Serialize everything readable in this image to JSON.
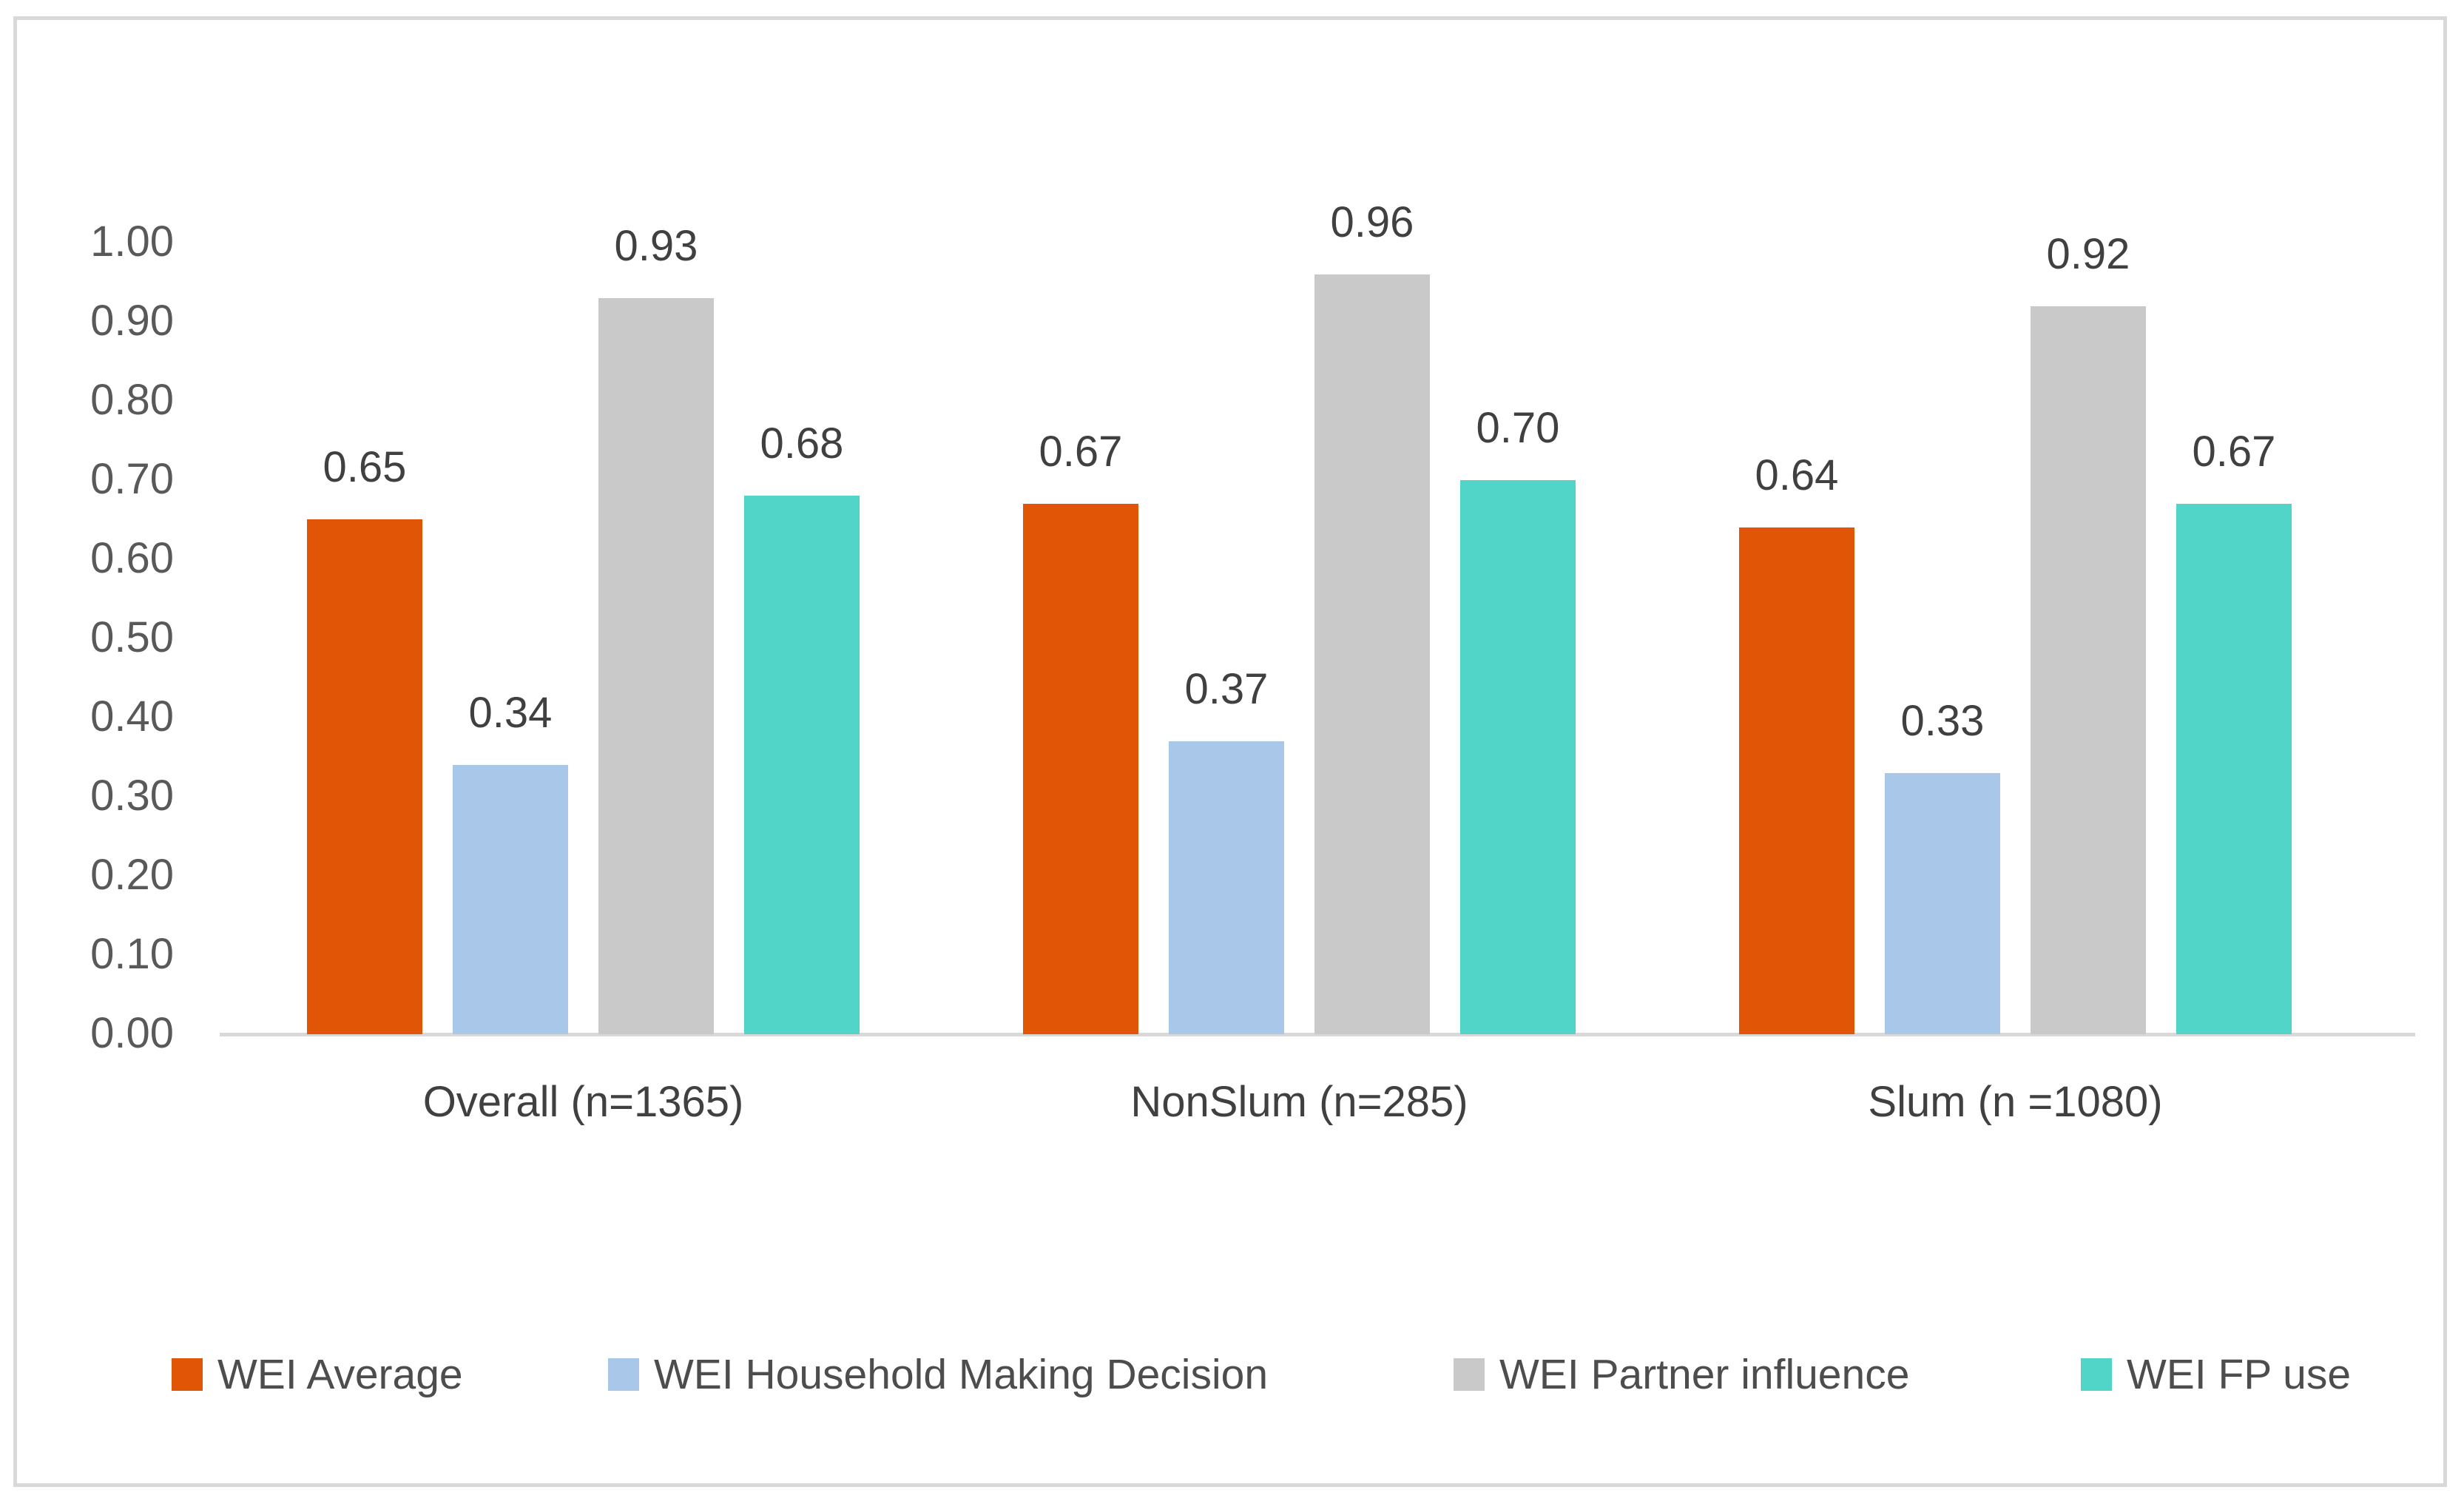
{
  "chart_data": {
    "type": "bar",
    "title": "",
    "categories": [
      "Overall (n=1365)",
      "NonSlum (n=285)",
      "Slum (n =1080)"
    ],
    "series": [
      {
        "name": "WEI Average",
        "color": "#e15506",
        "values": [
          0.65,
          0.67,
          0.64
        ],
        "data_labels": [
          "0.65",
          "0.67",
          "0.64"
        ]
      },
      {
        "name": "WEI Household Making Decision",
        "color": "#a9c7e8",
        "values": [
          0.34,
          0.37,
          0.33
        ],
        "data_labels": [
          "0.34",
          "0.37",
          "0.33"
        ]
      },
      {
        "name": "WEI Partner influence",
        "color": "#c9c9c9",
        "values": [
          0.93,
          0.96,
          0.92
        ],
        "data_labels": [
          "0.93",
          "0.96",
          "0.92"
        ]
      },
      {
        "name": "WEI FP use",
        "color": "#50d5c8",
        "values": [
          0.68,
          0.7,
          0.67
        ],
        "data_labels": [
          "0.68",
          "0.70",
          "0.67"
        ]
      }
    ],
    "y_axis": {
      "min": 0,
      "max": 1,
      "step": 0.1,
      "tick_labels": [
        "0.00",
        "0.10",
        "0.20",
        "0.30",
        "0.40",
        "0.50",
        "0.60",
        "0.70",
        "0.80",
        "0.90",
        "1.00"
      ]
    },
    "grid": false,
    "data_labels_shown": true,
    "legend_position": "bottom"
  },
  "frame": {
    "border_color": "#d9d9d9",
    "axis_line_color": "#d9d9d9"
  },
  "text_colors": {
    "ticks": "#595959",
    "data_labels": "#404040",
    "categories": "#404040",
    "legend": "#4d4d4d"
  }
}
